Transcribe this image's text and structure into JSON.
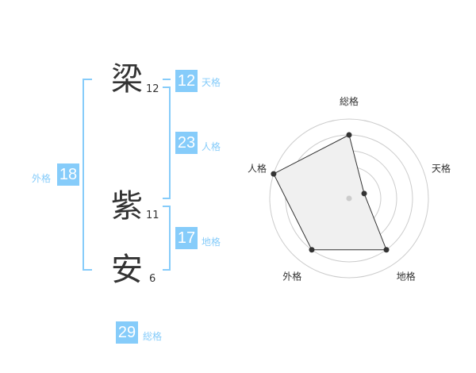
{
  "name": {
    "chars": [
      {
        "char": "梁",
        "strokes": "12"
      },
      {
        "char": "紫",
        "strokes": "11"
      },
      {
        "char": "安",
        "strokes": "6"
      }
    ]
  },
  "fortunes": {
    "tenkaku": {
      "value": "12",
      "label": "天格"
    },
    "jinkaku": {
      "value": "23",
      "label": "人格"
    },
    "chikaku": {
      "value": "17",
      "label": "地格"
    },
    "gaikaku": {
      "value": "18",
      "label": "外格"
    },
    "soukaku": {
      "value": "29",
      "label": "総格"
    }
  },
  "colors": {
    "accent": "#86ccfa",
    "radar_fill": "#f0f0f0",
    "radar_line": "#333333",
    "grid": "#cccccc"
  },
  "chart_data": {
    "type": "radar",
    "axes": [
      "総格",
      "天格",
      "地格",
      "外格",
      "人格"
    ],
    "values": [
      4,
      1,
      4,
      4,
      5
    ],
    "range": [
      0,
      5
    ],
    "rings": 5
  }
}
